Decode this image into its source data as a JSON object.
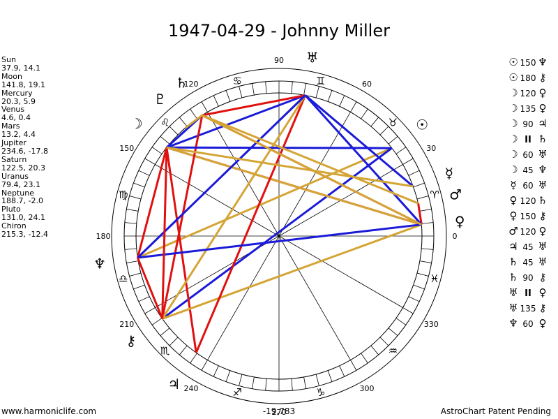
{
  "title": "1947-04-29 - Johnny Miller",
  "footer": {
    "left": "www.harmoniclife.com",
    "center": "-19,783",
    "right": "AstroChart Patent Pending"
  },
  "planets": [
    {
      "name": "Sun",
      "coords": "37.9, 14.1",
      "lon": 37.9,
      "glyph": "☉"
    },
    {
      "name": "Moon",
      "coords": "141.8, 19.1",
      "lon": 141.8,
      "glyph": "☽"
    },
    {
      "name": "Mercury",
      "coords": "20.3, 5.9",
      "lon": 20.3,
      "glyph": "☿"
    },
    {
      "name": "Venus",
      "coords": "4.6, 0.4",
      "lon": 4.6,
      "glyph": "♀"
    },
    {
      "name": "Mars",
      "coords": "13.2, 4.4",
      "lon": 13.2,
      "glyph": "♂"
    },
    {
      "name": "Jupiter",
      "coords": "234.6, -17.8",
      "lon": 234.6,
      "glyph": "♃"
    },
    {
      "name": "Saturn",
      "coords": "122.5, 20.3",
      "lon": 122.5,
      "glyph": "♄"
    },
    {
      "name": "Uranus",
      "coords": "79.4, 23.1",
      "lon": 79.4,
      "glyph": "♅"
    },
    {
      "name": "Neptune",
      "coords": "188.7, -2.0",
      "lon": 188.7,
      "glyph": "♆"
    },
    {
      "name": "Pluto",
      "coords": "131.0, 24.1",
      "lon": 131.0,
      "glyph": "♇"
    },
    {
      "name": "Chiron",
      "coords": "215.3, -12.4",
      "lon": 215.3,
      "glyph": "⚷"
    }
  ],
  "aspects": [
    {
      "p1": "Sun",
      "g1": "☉",
      "angle": "150",
      "g2": "♆",
      "p2": "Neptune",
      "color": "#d4a536"
    },
    {
      "p1": "Sun",
      "g1": "☉",
      "angle": "180",
      "g2": "⚷",
      "p2": "Chiron",
      "color": "#1a1ad8"
    },
    {
      "p1": "Moon",
      "g1": "☽",
      "angle": "120",
      "g2": "♀",
      "p2": "Venus",
      "color": "#e01010"
    },
    {
      "p1": "Moon",
      "g1": "☽",
      "angle": "135",
      "g2": "♀",
      "p2": "Venus",
      "color": "#d4a536"
    },
    {
      "p1": "Moon",
      "g1": "☽",
      "angle": "90",
      "g2": "♃",
      "p2": "Jupiter",
      "color": "#e01010"
    },
    {
      "p1": "Moon",
      "g1": "☽",
      "angle": "II",
      "g2": "♄",
      "p2": "Saturn",
      "color": "#1a1ad8"
    },
    {
      "p1": "Moon",
      "g1": "☽",
      "angle": "60",
      "g2": "♅",
      "p2": "Uranus",
      "color": "#1a1ad8"
    },
    {
      "p1": "Moon",
      "g1": "☽",
      "angle": "45",
      "g2": "♆",
      "p2": "Neptune",
      "color": "#e01010"
    },
    {
      "p1": "Mercury",
      "g1": "☿",
      "angle": "60",
      "g2": "♅",
      "p2": "Uranus",
      "color": "#1a1ad8"
    },
    {
      "p1": "Venus",
      "g1": "♀",
      "angle": "120",
      "g2": "♄",
      "p2": "Saturn",
      "color": "#e01010"
    },
    {
      "p1": "Venus",
      "g1": "♀",
      "angle": "150",
      "g2": "⚷",
      "p2": "Chiron",
      "color": "#d4a536"
    },
    {
      "p1": "Mars",
      "g1": "♂",
      "angle": "120",
      "g2": "♀",
      "p2": "Venus",
      "color": "#e01010"
    },
    {
      "p1": "Jupiter",
      "g1": "♃",
      "angle": "45",
      "g2": "♅",
      "p2": "Uranus",
      "color": "#e01010"
    },
    {
      "p1": "Saturn",
      "g1": "♄",
      "angle": "45",
      "g2": "♅",
      "p2": "Uranus",
      "color": "#e01010"
    },
    {
      "p1": "Saturn",
      "g1": "♄",
      "angle": "90",
      "g2": "⚷",
      "p2": "Chiron",
      "color": "#e01010"
    },
    {
      "p1": "Uranus",
      "g1": "♅",
      "angle": "II",
      "g2": "♀",
      "p2": "Venus",
      "color": "#1a1ad8"
    },
    {
      "p1": "Uranus",
      "g1": "♅",
      "angle": "135",
      "g2": "⚷",
      "p2": "Chiron",
      "color": "#d4a536"
    },
    {
      "p1": "Neptune",
      "g1": "♆",
      "angle": "60",
      "g2": "♀",
      "p2": "Venus",
      "color": "#1a1ad8"
    }
  ],
  "extra_lines": [
    {
      "from": "Moon",
      "to": "Sun",
      "color": "#1a1ad8"
    },
    {
      "from": "Neptune",
      "to": "Uranus",
      "color": "#1a1ad8"
    },
    {
      "from": "Neptune",
      "to": "Chiron",
      "color": "#e01010"
    },
    {
      "from": "Moon",
      "to": "Chiron",
      "color": "#e01010"
    },
    {
      "from": "Saturn",
      "to": "Venus",
      "color": "#d4a536"
    },
    {
      "from": "Moon",
      "to": "Mercury",
      "color": "#d4a536"
    },
    {
      "from": "Saturn",
      "to": "Mars",
      "color": "#d4a536"
    },
    {
      "from": "Saturn",
      "to": "Pluto",
      "color": "#d4a536"
    }
  ],
  "axis_labels": [
    "0",
    "30",
    "60",
    "90",
    "120",
    "150",
    "180",
    "210",
    "240",
    "270",
    "300",
    "330"
  ],
  "signs": [
    {
      "name": "Aries",
      "glyph": "♈"
    },
    {
      "name": "Taurus",
      "glyph": "♉"
    },
    {
      "name": "Gemini",
      "glyph": "♊"
    },
    {
      "name": "Cancer",
      "glyph": "♋"
    },
    {
      "name": "Leo",
      "glyph": "♌"
    },
    {
      "name": "Virgo",
      "glyph": "♍"
    },
    {
      "name": "Libra",
      "glyph": "♎"
    },
    {
      "name": "Scorpio",
      "glyph": "♏"
    },
    {
      "name": "Sagittarius",
      "glyph": "♐"
    },
    {
      "name": "Capricorn",
      "glyph": "♑"
    },
    {
      "name": "Aquarius",
      "glyph": "♒"
    },
    {
      "name": "Pisces",
      "glyph": "♓"
    }
  ],
  "colors": {
    "red": "#e01010",
    "blue": "#1a1ad8",
    "gold": "#d4a536",
    "ring": "#000000"
  },
  "chart_data": {
    "type": "radial",
    "title": "1947-04-29 - Johnny Miller",
    "planet_longitudes": {
      "Sun": 37.9,
      "Moon": 141.8,
      "Mercury": 20.3,
      "Venus": 4.6,
      "Mars": 13.2,
      "Jupiter": 234.6,
      "Saturn": 122.5,
      "Uranus": 79.4,
      "Neptune": 188.7,
      "Pluto": 131.0,
      "Chiron": 215.3
    },
    "planet_latitudes": {
      "Sun": 14.1,
      "Moon": 19.1,
      "Mercury": 5.9,
      "Venus": 0.4,
      "Mars": 4.4,
      "Jupiter": -17.8,
      "Saturn": 20.3,
      "Uranus": 23.1,
      "Neptune": -2.0,
      "Pluto": 24.1,
      "Chiron": -12.4
    },
    "angular_range": [
      0,
      360
    ]
  }
}
